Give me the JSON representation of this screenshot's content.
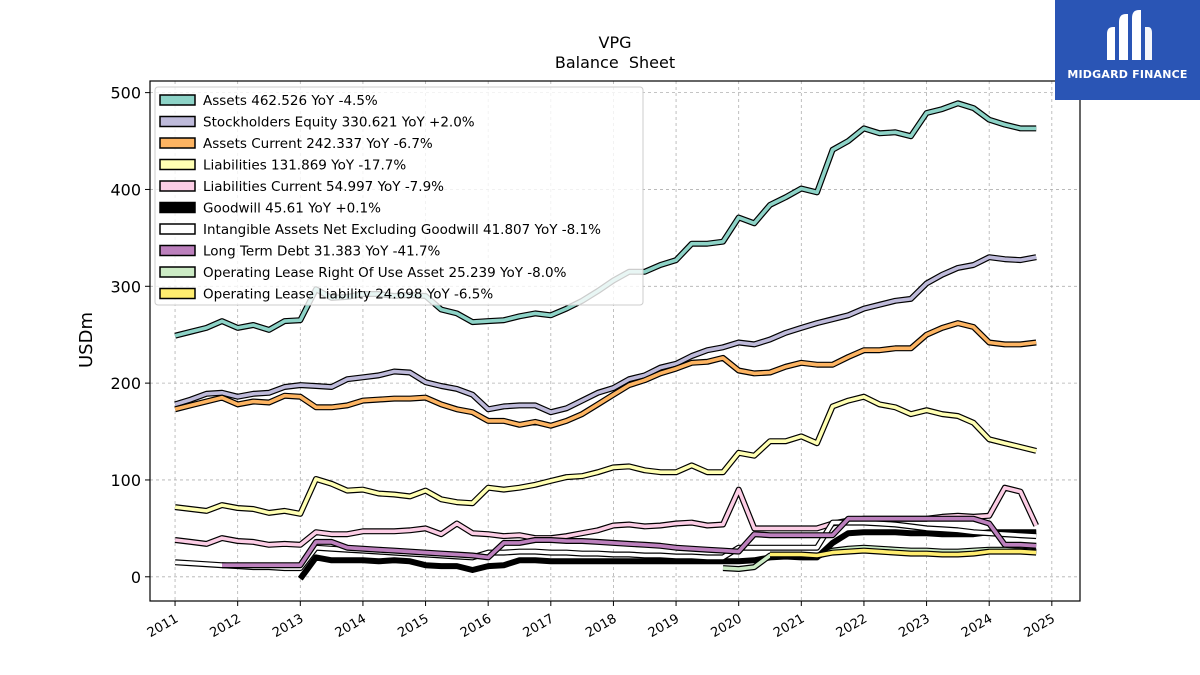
{
  "brand": {
    "name": "MIDGARD FINANCE",
    "color": "#2a55b5"
  },
  "chart_data": {
    "type": "line",
    "title": "VPG",
    "subtitle": "Balance  Sheet",
    "xlabel": "",
    "ylabel": "USDm",
    "xlim": [
      2010.6,
      2025.45
    ],
    "ylim": [
      -25,
      512
    ],
    "x_ticks": [
      2011,
      2012,
      2013,
      2014,
      2015,
      2016,
      2017,
      2018,
      2019,
      2020,
      2021,
      2022,
      2023,
      2024,
      2025
    ],
    "x_tick_labels": [
      "2011",
      "2012",
      "2013",
      "2014",
      "2015",
      "2016",
      "2017",
      "2018",
      "2019",
      "2020",
      "2021",
      "2022",
      "2023",
      "2024",
      "2025"
    ],
    "y_ticks": [
      0,
      100,
      200,
      300,
      400,
      500
    ],
    "y_tick_labels": [
      "0",
      "100",
      "200",
      "300",
      "400",
      "500"
    ],
    "grid": true,
    "legend_position": "top-left",
    "series": [
      {
        "name": "Assets  462.526 YoY -4.5%",
        "color": "#8dd3c7",
        "x": [
          2011.0,
          2011.25,
          2011.5,
          2011.75,
          2012.0,
          2012.25,
          2012.5,
          2012.75,
          2013.0,
          2013.25,
          2013.5,
          2013.75,
          2014.0,
          2014.25,
          2014.5,
          2014.75,
          2015.0,
          2015.25,
          2015.5,
          2015.75,
          2016.0,
          2016.25,
          2016.5,
          2016.75,
          2017.0,
          2017.25,
          2017.5,
          2017.75,
          2018.0,
          2018.25,
          2018.5,
          2018.75,
          2019.0,
          2019.25,
          2019.5,
          2019.75,
          2020.0,
          2020.25,
          2020.5,
          2020.75,
          2021.0,
          2021.25,
          2021.5,
          2021.75,
          2022.0,
          2022.25,
          2022.5,
          2022.75,
          2023.0,
          2023.25,
          2023.5,
          2023.75,
          2024.0,
          2024.25,
          2024.5,
          2024.75
        ],
        "y": [
          249,
          253,
          257,
          264,
          257,
          260,
          255,
          264,
          265,
          297,
          288,
          289,
          292,
          292,
          290,
          291,
          290,
          276,
          272,
          263,
          264,
          265,
          269,
          272,
          270,
          277,
          285,
          295,
          306,
          315,
          315,
          322,
          327,
          344,
          344,
          346,
          371,
          365,
          384,
          392,
          401,
          397,
          441,
          450,
          463,
          458,
          459,
          455,
          479,
          483,
          489,
          484,
          472,
          467,
          463,
          463
        ]
      },
      {
        "name": "Stockholders Equity  330.621 YoY +2.0%",
        "color": "#bebada",
        "x": [
          2011.0,
          2011.25,
          2011.5,
          2011.75,
          2012.0,
          2012.25,
          2012.5,
          2012.75,
          2013.0,
          2013.25,
          2013.5,
          2013.75,
          2014.0,
          2014.25,
          2014.5,
          2014.75,
          2015.0,
          2015.25,
          2015.5,
          2015.75,
          2016.0,
          2016.25,
          2016.5,
          2016.75,
          2017.0,
          2017.25,
          2017.5,
          2017.75,
          2018.0,
          2018.25,
          2018.5,
          2018.75,
          2019.0,
          2019.25,
          2019.5,
          2019.75,
          2020.0,
          2020.25,
          2020.5,
          2020.75,
          2021.0,
          2021.25,
          2021.5,
          2021.75,
          2022.0,
          2022.25,
          2022.5,
          2022.75,
          2023.0,
          2023.25,
          2023.5,
          2023.75,
          2024.0,
          2024.25,
          2024.5,
          2024.75
        ],
        "y": [
          178,
          183,
          189,
          190,
          186,
          189,
          190,
          196,
          198,
          197,
          196,
          204,
          206,
          208,
          212,
          211,
          201,
          197,
          194,
          188,
          173,
          176,
          177,
          177,
          170,
          174,
          182,
          190,
          195,
          204,
          208,
          216,
          220,
          228,
          234,
          237,
          242,
          240,
          245,
          252,
          257,
          262,
          266,
          270,
          277,
          281,
          285,
          287,
          303,
          312,
          319,
          322,
          330,
          328,
          327,
          330
        ]
      },
      {
        "name": "Assets Current  242.337 YoY -6.7%",
        "color": "#fdb462",
        "x": [
          2011.0,
          2011.25,
          2011.5,
          2011.75,
          2012.0,
          2012.25,
          2012.5,
          2012.75,
          2013.0,
          2013.25,
          2013.5,
          2013.75,
          2014.0,
          2014.25,
          2014.5,
          2014.75,
          2015.0,
          2015.25,
          2015.5,
          2015.75,
          2016.0,
          2016.25,
          2016.5,
          2016.75,
          2017.0,
          2017.25,
          2017.5,
          2017.75,
          2018.0,
          2018.25,
          2018.5,
          2018.75,
          2019.0,
          2019.25,
          2019.5,
          2019.75,
          2020.0,
          2020.25,
          2020.5,
          2020.75,
          2021.0,
          2021.25,
          2021.5,
          2021.75,
          2022.0,
          2022.25,
          2022.5,
          2022.75,
          2023.0,
          2023.25,
          2023.5,
          2023.75,
          2024.0,
          2024.25,
          2024.5,
          2024.75
        ],
        "y": [
          173,
          177,
          181,
          185,
          178,
          181,
          180,
          187,
          186,
          175,
          175,
          177,
          182,
          183,
          184,
          184,
          185,
          178,
          173,
          170,
          161,
          161,
          157,
          160,
          156,
          161,
          168,
          178,
          188,
          198,
          203,
          210,
          215,
          221,
          222,
          226,
          213,
          210,
          211,
          217,
          221,
          219,
          219,
          227,
          234,
          234,
          236,
          236,
          250,
          257,
          262,
          258,
          242,
          240,
          240,
          242
        ]
      },
      {
        "name": "Liabilities  131.869 YoY -17.7%",
        "color": "#ffffb3",
        "x": [
          2011.0,
          2011.25,
          2011.5,
          2011.75,
          2012.0,
          2012.25,
          2012.5,
          2012.75,
          2013.0,
          2013.25,
          2013.5,
          2013.75,
          2014.0,
          2014.25,
          2014.5,
          2014.75,
          2015.0,
          2015.25,
          2015.5,
          2015.75,
          2016.0,
          2016.25,
          2016.5,
          2016.75,
          2017.0,
          2017.25,
          2017.5,
          2017.75,
          2018.0,
          2018.25,
          2018.5,
          2018.75,
          2019.0,
          2019.25,
          2019.5,
          2019.75,
          2020.0,
          2020.25,
          2020.5,
          2020.75,
          2021.0,
          2021.25,
          2021.5,
          2021.75,
          2022.0,
          2022.25,
          2022.5,
          2022.75,
          2023.0,
          2023.25,
          2023.5,
          2023.75,
          2024.0,
          2024.25,
          2024.5,
          2024.75
        ],
        "y": [
          72,
          70,
          68,
          74,
          71,
          70,
          66,
          68,
          65,
          101,
          96,
          89,
          90,
          86,
          85,
          83,
          89,
          80,
          77,
          76,
          92,
          90,
          92,
          95,
          99,
          103,
          104,
          108,
          113,
          114,
          110,
          108,
          108,
          115,
          108,
          108,
          128,
          125,
          140,
          140,
          145,
          138,
          176,
          182,
          186,
          178,
          175,
          168,
          172,
          168,
          166,
          159,
          142,
          138,
          134,
          130
        ]
      },
      {
        "name": "Liabilities Current  54.997 YoY -7.9%",
        "color": "#fccde5",
        "x": [
          2011.0,
          2011.25,
          2011.5,
          2011.75,
          2012.0,
          2012.25,
          2012.5,
          2012.75,
          2013.0,
          2013.25,
          2013.5,
          2013.75,
          2014.0,
          2014.25,
          2014.5,
          2014.75,
          2015.0,
          2015.25,
          2015.5,
          2015.75,
          2016.0,
          2016.25,
          2016.5,
          2016.75,
          2017.0,
          2017.25,
          2017.5,
          2017.75,
          2018.0,
          2018.25,
          2018.5,
          2018.75,
          2019.0,
          2019.25,
          2019.5,
          2019.75,
          2020.0,
          2020.25,
          2020.5,
          2020.75,
          2021.0,
          2021.25,
          2021.5,
          2021.75,
          2022.0,
          2022.25,
          2022.5,
          2022.75,
          2023.0,
          2023.25,
          2023.5,
          2023.75,
          2024.0,
          2024.25,
          2024.5,
          2024.75
        ],
        "y": [
          38,
          36,
          34,
          40,
          37,
          36,
          33,
          34,
          33,
          46,
          44,
          44,
          47,
          47,
          47,
          48,
          50,
          44,
          55,
          45,
          44,
          42,
          43,
          40,
          40,
          42,
          45,
          48,
          53,
          54,
          52,
          53,
          55,
          56,
          53,
          54,
          90,
          50,
          50,
          50,
          50,
          50,
          55,
          58,
          60,
          60,
          60,
          60,
          60,
          62,
          63,
          62,
          63,
          92,
          88,
          53
        ]
      },
      {
        "name": "Goodwill  45.61 YoY +0.1%",
        "color": "#000000",
        "x": [
          2013.0,
          2013.25,
          2013.5,
          2013.75,
          2014.0,
          2014.25,
          2014.5,
          2014.75,
          2015.0,
          2015.25,
          2015.5,
          2015.75,
          2016.0,
          2016.25,
          2016.5,
          2016.75,
          2017.0,
          2017.25,
          2017.5,
          2017.75,
          2018.0,
          2018.25,
          2018.5,
          2018.75,
          2019.0,
          2019.25,
          2019.5,
          2019.75,
          2020.0,
          2020.25,
          2020.5,
          2020.75,
          2021.0,
          2021.25,
          2021.5,
          2021.75,
          2022.0,
          2022.25,
          2022.5,
          2022.75,
          2023.0,
          2023.25,
          2023.5,
          2023.75,
          2024.0,
          2024.25,
          2024.5,
          2024.75
        ],
        "y": [
          -2,
          20,
          17,
          17,
          17,
          16,
          17,
          16,
          12,
          11,
          11,
          7,
          11,
          12,
          17,
          17,
          16,
          16,
          16,
          16,
          16,
          16,
          16,
          16,
          16,
          16,
          16,
          16,
          16,
          17,
          20,
          21,
          20,
          20,
          35,
          45,
          46,
          46,
          46,
          45,
          45,
          44,
          44,
          44,
          46,
          46,
          46,
          46
        ]
      },
      {
        "name": "Intangible Assets Net Excluding Goodwill  41.807 YoY -8.1%",
        "color": "#ffffff",
        "x": [
          2011.0,
          2011.25,
          2011.5,
          2011.75,
          2012.0,
          2012.25,
          2012.5,
          2012.75,
          2013.0,
          2013.25,
          2013.5,
          2013.75,
          2014.0,
          2014.25,
          2014.5,
          2014.75,
          2015.0,
          2015.25,
          2015.5,
          2015.75,
          2016.0,
          2016.25,
          2016.5,
          2016.75,
          2017.0,
          2017.25,
          2017.5,
          2017.75,
          2018.0,
          2018.25,
          2018.5,
          2018.75,
          2019.0,
          2019.25,
          2019.5,
          2019.75,
          2020.0,
          2020.25,
          2020.5,
          2020.75,
          2021.0,
          2021.25,
          2021.5,
          2021.75,
          2022.0,
          2022.25,
          2022.5,
          2022.75,
          2023.0,
          2023.25,
          2023.5,
          2023.75,
          2024.0,
          2024.25,
          2024.5,
          2024.75
        ],
        "y": [
          15,
          14,
          13,
          12,
          11,
          10,
          10,
          9,
          9,
          30,
          29,
          28,
          27,
          26,
          25,
          24,
          23,
          22,
          21,
          20,
          25,
          25,
          26,
          26,
          25,
          25,
          24,
          24,
          23,
          23,
          22,
          22,
          21,
          21,
          20,
          20,
          30,
          30,
          30,
          30,
          30,
          30,
          56,
          56,
          56,
          55,
          54,
          52,
          50,
          49,
          48,
          46,
          45,
          44,
          43,
          42
        ]
      },
      {
        "name": "Long Term Debt  31.383 YoY -41.7%",
        "color": "#bc80bd",
        "x": [
          2011.75,
          2012.0,
          2012.25,
          2012.5,
          2012.75,
          2013.0,
          2013.25,
          2013.5,
          2013.75,
          2014.0,
          2014.25,
          2014.5,
          2014.75,
          2015.0,
          2015.25,
          2015.5,
          2015.75,
          2016.0,
          2016.25,
          2016.5,
          2016.75,
          2017.0,
          2017.25,
          2017.5,
          2017.75,
          2018.0,
          2018.25,
          2018.5,
          2018.75,
          2019.0,
          2019.25,
          2019.5,
          2019.75,
          2020.0,
          2020.25,
          2020.5,
          2020.75,
          2021.0,
          2021.25,
          2021.5,
          2021.75,
          2022.0,
          2022.25,
          2022.5,
          2022.75,
          2023.0,
          2023.25,
          2023.5,
          2023.75,
          2024.0,
          2024.25,
          2024.5,
          2024.75
        ],
        "y": [
          12,
          12,
          12,
          12,
          12,
          12,
          36,
          36,
          30,
          29,
          28,
          27,
          26,
          25,
          24,
          23,
          22,
          20,
          35,
          35,
          38,
          38,
          37,
          37,
          36,
          35,
          34,
          33,
          32,
          30,
          29,
          28,
          27,
          26,
          44,
          43,
          43,
          43,
          43,
          43,
          60,
          60,
          60,
          60,
          60,
          60,
          60,
          60,
          60,
          55,
          33,
          33,
          32
        ]
      },
      {
        "name": "Operating Lease Right Of Use Asset  25.239 YoY -8.0%",
        "color": "#ccebc5",
        "x": [
          2019.75,
          2020.0,
          2020.25,
          2020.5,
          2020.75,
          2021.0,
          2021.25,
          2021.5,
          2021.75,
          2022.0,
          2022.25,
          2022.5,
          2022.75,
          2023.0,
          2023.25,
          2023.5,
          2023.75,
          2024.0,
          2024.25,
          2024.5,
          2024.75
        ],
        "y": [
          9,
          8,
          10,
          22,
          22,
          22,
          21,
          27,
          29,
          30,
          29,
          28,
          27,
          27,
          26,
          26,
          27,
          28,
          28,
          27,
          26
        ]
      },
      {
        "name": "Operating Lease Liability  24.698 YoY -6.5%",
        "color": "#ffed6f",
        "x": [
          2020.5,
          2020.75,
          2021.0,
          2021.25,
          2021.5,
          2021.75,
          2022.0,
          2022.25,
          2022.5,
          2022.75,
          2023.0,
          2023.25,
          2023.5,
          2023.75,
          2024.0,
          2024.25,
          2024.5,
          2024.75
        ],
        "y": [
          23,
          23,
          23,
          22,
          25,
          26,
          27,
          26,
          25,
          24,
          24,
          23,
          23,
          24,
          26,
          26,
          26,
          25
        ]
      }
    ]
  }
}
